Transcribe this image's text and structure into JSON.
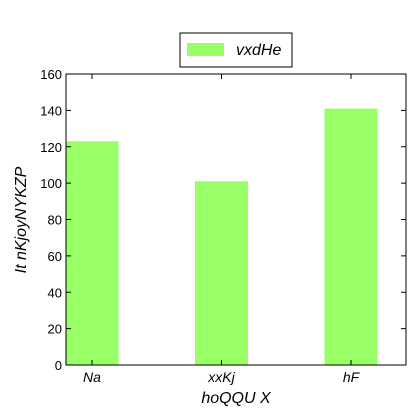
{
  "chart_data": {
    "type": "bar",
    "categories": [
      "Na",
      "xxKj",
      "hF"
    ],
    "series": [
      {
        "name": "vxdHe",
        "values": [
          123,
          101,
          141
        ]
      }
    ],
    "xlabel": "hoQQU  X",
    "ylabel": "It nKjoyNYKZP",
    "ylim": [
      0,
      160
    ],
    "yticks": [
      0,
      20,
      40,
      60,
      80,
      100,
      120,
      140,
      160
    ],
    "grid": false,
    "legend_position": "top-center",
    "bar_color": "#99ff66",
    "axis_color": "#000000"
  }
}
